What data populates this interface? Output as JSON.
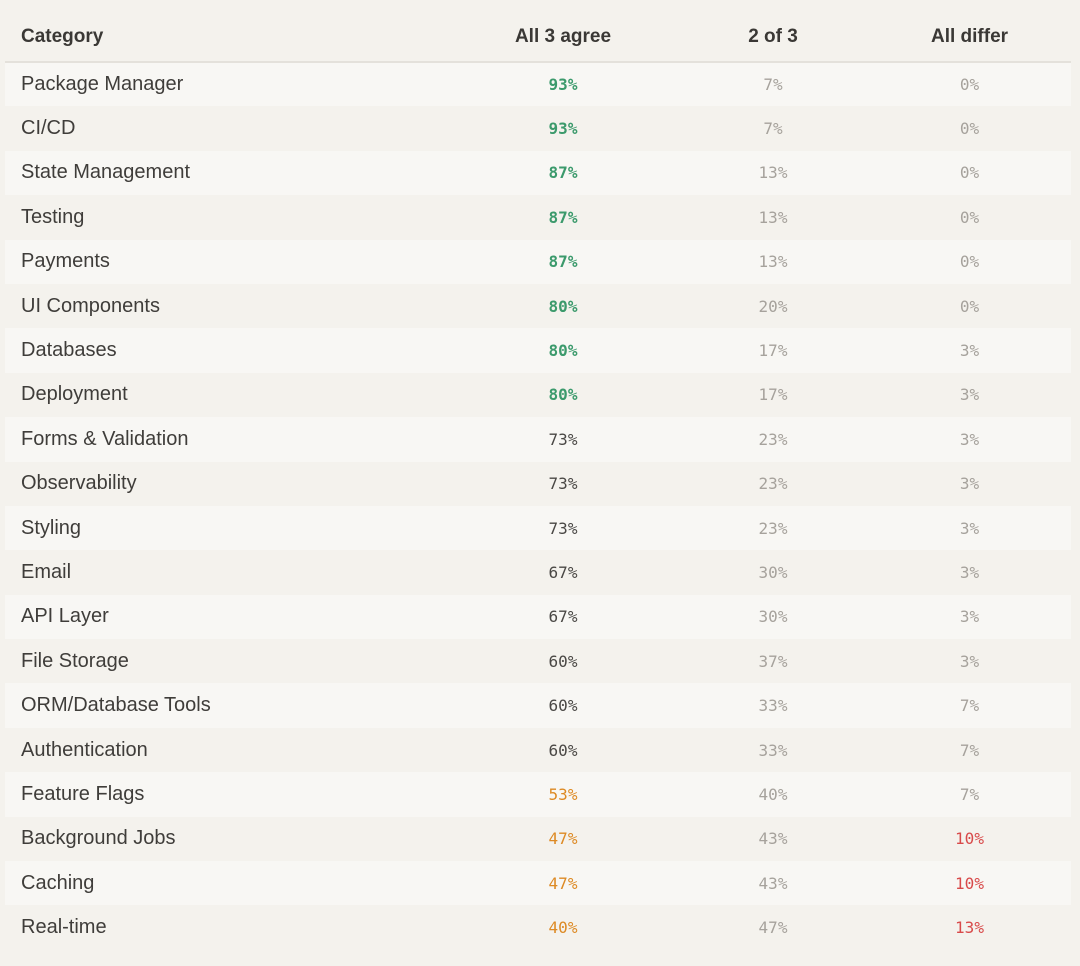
{
  "table": {
    "headers": {
      "category": "Category",
      "all_agree": "All 3 agree",
      "two_of_three": "2 of 3",
      "all_differ": "All differ"
    },
    "rows": [
      {
        "category": "Package Manager",
        "all_agree": "93%",
        "two_of_three": "7%",
        "all_differ": "0%"
      },
      {
        "category": "CI/CD",
        "all_agree": "93%",
        "two_of_three": "7%",
        "all_differ": "0%"
      },
      {
        "category": "State Management",
        "all_agree": "87%",
        "two_of_three": "13%",
        "all_differ": "0%"
      },
      {
        "category": "Testing",
        "all_agree": "87%",
        "two_of_three": "13%",
        "all_differ": "0%"
      },
      {
        "category": "Payments",
        "all_agree": "87%",
        "two_of_three": "13%",
        "all_differ": "0%"
      },
      {
        "category": "UI Components",
        "all_agree": "80%",
        "two_of_three": "20%",
        "all_differ": "0%"
      },
      {
        "category": "Databases",
        "all_agree": "80%",
        "two_of_three": "17%",
        "all_differ": "3%"
      },
      {
        "category": "Deployment",
        "all_agree": "80%",
        "two_of_three": "17%",
        "all_differ": "3%"
      },
      {
        "category": "Forms & Validation",
        "all_agree": "73%",
        "two_of_three": "23%",
        "all_differ": "3%"
      },
      {
        "category": "Observability",
        "all_agree": "73%",
        "two_of_three": "23%",
        "all_differ": "3%"
      },
      {
        "category": "Styling",
        "all_agree": "73%",
        "two_of_three": "23%",
        "all_differ": "3%"
      },
      {
        "category": "Email",
        "all_agree": "67%",
        "two_of_three": "30%",
        "all_differ": "3%"
      },
      {
        "category": "API Layer",
        "all_agree": "67%",
        "two_of_three": "30%",
        "all_differ": "3%"
      },
      {
        "category": "File Storage",
        "all_agree": "60%",
        "two_of_three": "37%",
        "all_differ": "3%"
      },
      {
        "category": "ORM/Database Tools",
        "all_agree": "60%",
        "two_of_three": "33%",
        "all_differ": "7%"
      },
      {
        "category": "Authentication",
        "all_agree": "60%",
        "two_of_three": "33%",
        "all_differ": "7%"
      },
      {
        "category": "Feature Flags",
        "all_agree": "53%",
        "two_of_three": "40%",
        "all_differ": "7%"
      },
      {
        "category": "Background Jobs",
        "all_agree": "47%",
        "two_of_three": "43%",
        "all_differ": "10%"
      },
      {
        "category": "Caching",
        "all_agree": "47%",
        "two_of_three": "43%",
        "all_differ": "10%"
      },
      {
        "category": "Real-time",
        "all_agree": "40%",
        "two_of_three": "47%",
        "all_differ": "13%"
      }
    ]
  },
  "colors": {
    "background": "#f4f2ed",
    "row_alt": "#f8f7f4",
    "agree_high": "#3c9a6c",
    "agree_low": "#dd8a24",
    "differ_high": "#d84a4a",
    "muted": "#a6a29c"
  }
}
